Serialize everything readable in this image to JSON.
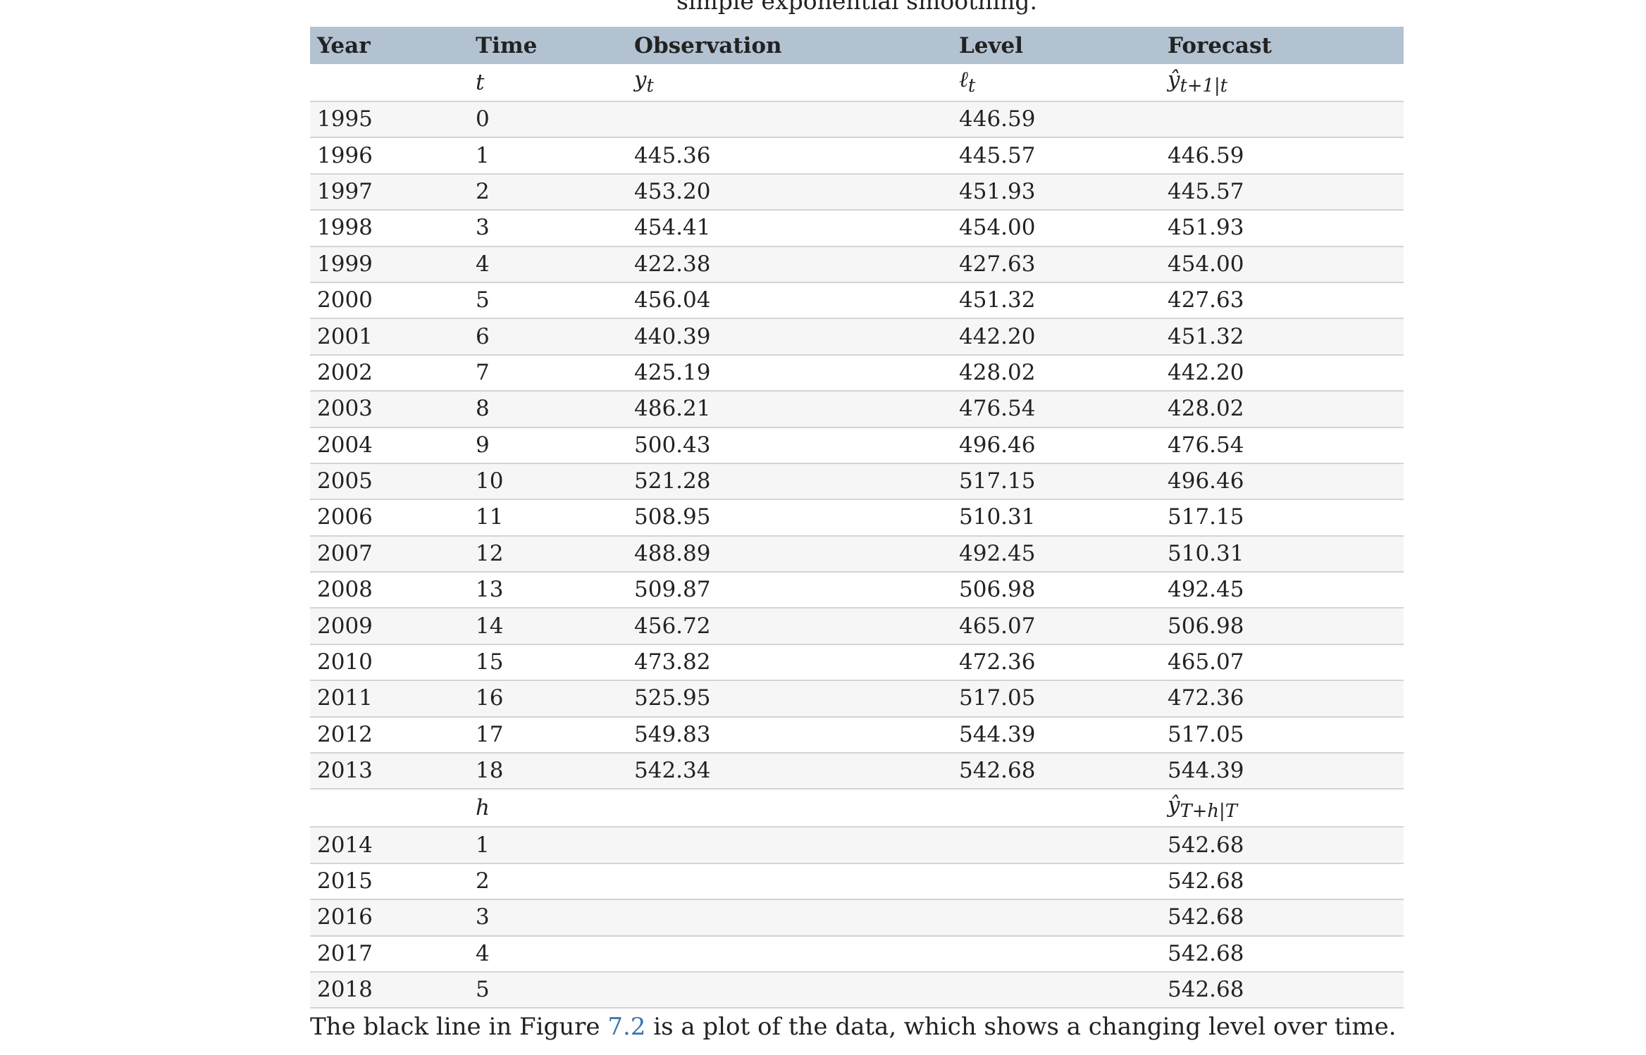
{
  "caption": "simple exponential smoothing.",
  "table": {
    "headers": [
      "Year",
      "Time",
      "Observation",
      "Level",
      "Forecast"
    ],
    "symbols": {
      "time": "t",
      "obs_base": "y",
      "obs_sub": "t",
      "level_base": "ℓ",
      "level_sub": "t",
      "forecast_base": "ŷ",
      "forecast_sub": "t+1|t"
    },
    "rows": [
      {
        "year": "1995",
        "time": "0",
        "obs": "",
        "level": "446.59",
        "forecast": ""
      },
      {
        "year": "1996",
        "time": "1",
        "obs": "445.36",
        "level": "445.57",
        "forecast": "446.59"
      },
      {
        "year": "1997",
        "time": "2",
        "obs": "453.20",
        "level": "451.93",
        "forecast": "445.57"
      },
      {
        "year": "1998",
        "time": "3",
        "obs": "454.41",
        "level": "454.00",
        "forecast": "451.93"
      },
      {
        "year": "1999",
        "time": "4",
        "obs": "422.38",
        "level": "427.63",
        "forecast": "454.00"
      },
      {
        "year": "2000",
        "time": "5",
        "obs": "456.04",
        "level": "451.32",
        "forecast": "427.63"
      },
      {
        "year": "2001",
        "time": "6",
        "obs": "440.39",
        "level": "442.20",
        "forecast": "451.32"
      },
      {
        "year": "2002",
        "time": "7",
        "obs": "425.19",
        "level": "428.02",
        "forecast": "442.20"
      },
      {
        "year": "2003",
        "time": "8",
        "obs": "486.21",
        "level": "476.54",
        "forecast": "428.02"
      },
      {
        "year": "2004",
        "time": "9",
        "obs": "500.43",
        "level": "496.46",
        "forecast": "476.54"
      },
      {
        "year": "2005",
        "time": "10",
        "obs": "521.28",
        "level": "517.15",
        "forecast": "496.46"
      },
      {
        "year": "2006",
        "time": "11",
        "obs": "508.95",
        "level": "510.31",
        "forecast": "517.15"
      },
      {
        "year": "2007",
        "time": "12",
        "obs": "488.89",
        "level": "492.45",
        "forecast": "510.31"
      },
      {
        "year": "2008",
        "time": "13",
        "obs": "509.87",
        "level": "506.98",
        "forecast": "492.45"
      },
      {
        "year": "2009",
        "time": "14",
        "obs": "456.72",
        "level": "465.07",
        "forecast": "506.98"
      },
      {
        "year": "2010",
        "time": "15",
        "obs": "473.82",
        "level": "472.36",
        "forecast": "465.07"
      },
      {
        "year": "2011",
        "time": "16",
        "obs": "525.95",
        "level": "517.05",
        "forecast": "472.36"
      },
      {
        "year": "2012",
        "time": "17",
        "obs": "549.83",
        "level": "544.39",
        "forecast": "517.05"
      },
      {
        "year": "2013",
        "time": "18",
        "obs": "542.34",
        "level": "542.68",
        "forecast": "544.39"
      }
    ],
    "forecast_symbols": {
      "horizon": "h",
      "forecast_base": "ŷ",
      "forecast_sub": "T+h|T"
    },
    "forecast_rows": [
      {
        "year": "2014",
        "h": "1",
        "forecast": "542.68"
      },
      {
        "year": "2015",
        "h": "2",
        "forecast": "542.68"
      },
      {
        "year": "2016",
        "h": "3",
        "forecast": "542.68"
      },
      {
        "year": "2017",
        "h": "4",
        "forecast": "542.68"
      },
      {
        "year": "2018",
        "h": "5",
        "forecast": "542.68"
      }
    ]
  },
  "paragraph": {
    "before": "The black line in Figure ",
    "link": "7.2",
    "after": " is a plot of the data, which shows a changing level over time."
  },
  "colors": {
    "header_bg": "#b3c2d1",
    "row_stripe": "#f6f6f6",
    "row_border": "#d4d4d4",
    "link": "#3a74ad",
    "text": "#222222"
  }
}
